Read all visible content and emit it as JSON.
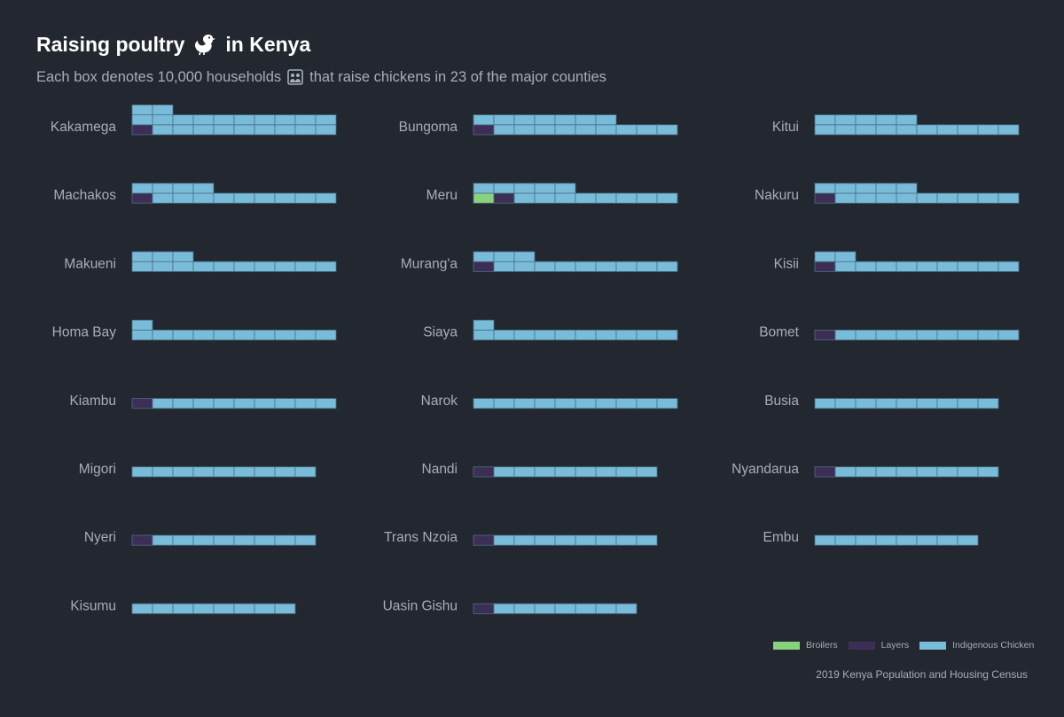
{
  "title": {
    "before": "Raising poultry",
    "after": "in Kenya",
    "icon": "hen-icon"
  },
  "subtitle": {
    "before": "Each box denotes 10,000 households",
    "after": "that raise chickens in 23 of the major counties",
    "icon": "household-icon"
  },
  "caption": "2019 Kenya Population and Housing Census",
  "colors": {
    "background": "#23272f",
    "Broilers": "#88d17d",
    "Layers": "#3d2e55",
    "Indigenous Chicken": "#78bcd9",
    "cell_border": "#4a6f86"
  },
  "chart_data": {
    "type": "waffle",
    "unit": "10,000 households",
    "categories": [
      "Broilers",
      "Layers",
      "Indigenous Chicken"
    ],
    "series": [
      {
        "county": "Kakamega",
        "Broilers": 0,
        "Layers": 1,
        "Indigenous Chicken": 21
      },
      {
        "county": "Bungoma",
        "Broilers": 0,
        "Layers": 1,
        "Indigenous Chicken": 16
      },
      {
        "county": "Kitui",
        "Broilers": 0,
        "Layers": 0,
        "Indigenous Chicken": 15
      },
      {
        "county": "Machakos",
        "Broilers": 0,
        "Layers": 1,
        "Indigenous Chicken": 13
      },
      {
        "county": "Meru",
        "Broilers": 1,
        "Layers": 1,
        "Indigenous Chicken": 13
      },
      {
        "county": "Nakuru",
        "Broilers": 0,
        "Layers": 1,
        "Indigenous Chicken": 14
      },
      {
        "county": "Makueni",
        "Broilers": 0,
        "Layers": 0,
        "Indigenous Chicken": 13
      },
      {
        "county": "Murang'a",
        "Broilers": 0,
        "Layers": 1,
        "Indigenous Chicken": 12
      },
      {
        "county": "Kisii",
        "Broilers": 0,
        "Layers": 1,
        "Indigenous Chicken": 11
      },
      {
        "county": "Homa Bay",
        "Broilers": 0,
        "Layers": 0,
        "Indigenous Chicken": 11
      },
      {
        "county": "Siaya",
        "Broilers": 0,
        "Layers": 0,
        "Indigenous Chicken": 11
      },
      {
        "county": "Bomet",
        "Broilers": 0,
        "Layers": 1,
        "Indigenous Chicken": 9
      },
      {
        "county": "Kiambu",
        "Broilers": 0,
        "Layers": 1,
        "Indigenous Chicken": 9
      },
      {
        "county": "Narok",
        "Broilers": 0,
        "Layers": 0,
        "Indigenous Chicken": 10
      },
      {
        "county": "Busia",
        "Broilers": 0,
        "Layers": 0,
        "Indigenous Chicken": 9
      },
      {
        "county": "Migori",
        "Broilers": 0,
        "Layers": 0,
        "Indigenous Chicken": 9
      },
      {
        "county": "Nandi",
        "Broilers": 0,
        "Layers": 1,
        "Indigenous Chicken": 8
      },
      {
        "county": "Nyandarua",
        "Broilers": 0,
        "Layers": 1,
        "Indigenous Chicken": 8
      },
      {
        "county": "Nyeri",
        "Broilers": 0,
        "Layers": 1,
        "Indigenous Chicken": 8
      },
      {
        "county": "Trans Nzoia",
        "Broilers": 0,
        "Layers": 1,
        "Indigenous Chicken": 8
      },
      {
        "county": "Embu",
        "Broilers": 0,
        "Layers": 0,
        "Indigenous Chicken": 8
      },
      {
        "county": "Kisumu",
        "Broilers": 0,
        "Layers": 0,
        "Indigenous Chicken": 8
      },
      {
        "county": "Uasin Gishu",
        "Broilers": 0,
        "Layers": 1,
        "Indigenous Chicken": 7
      }
    ],
    "legend": [
      "Broilers",
      "Layers",
      "Indigenous Chicken"
    ],
    "legend_position": "bottom-right"
  }
}
